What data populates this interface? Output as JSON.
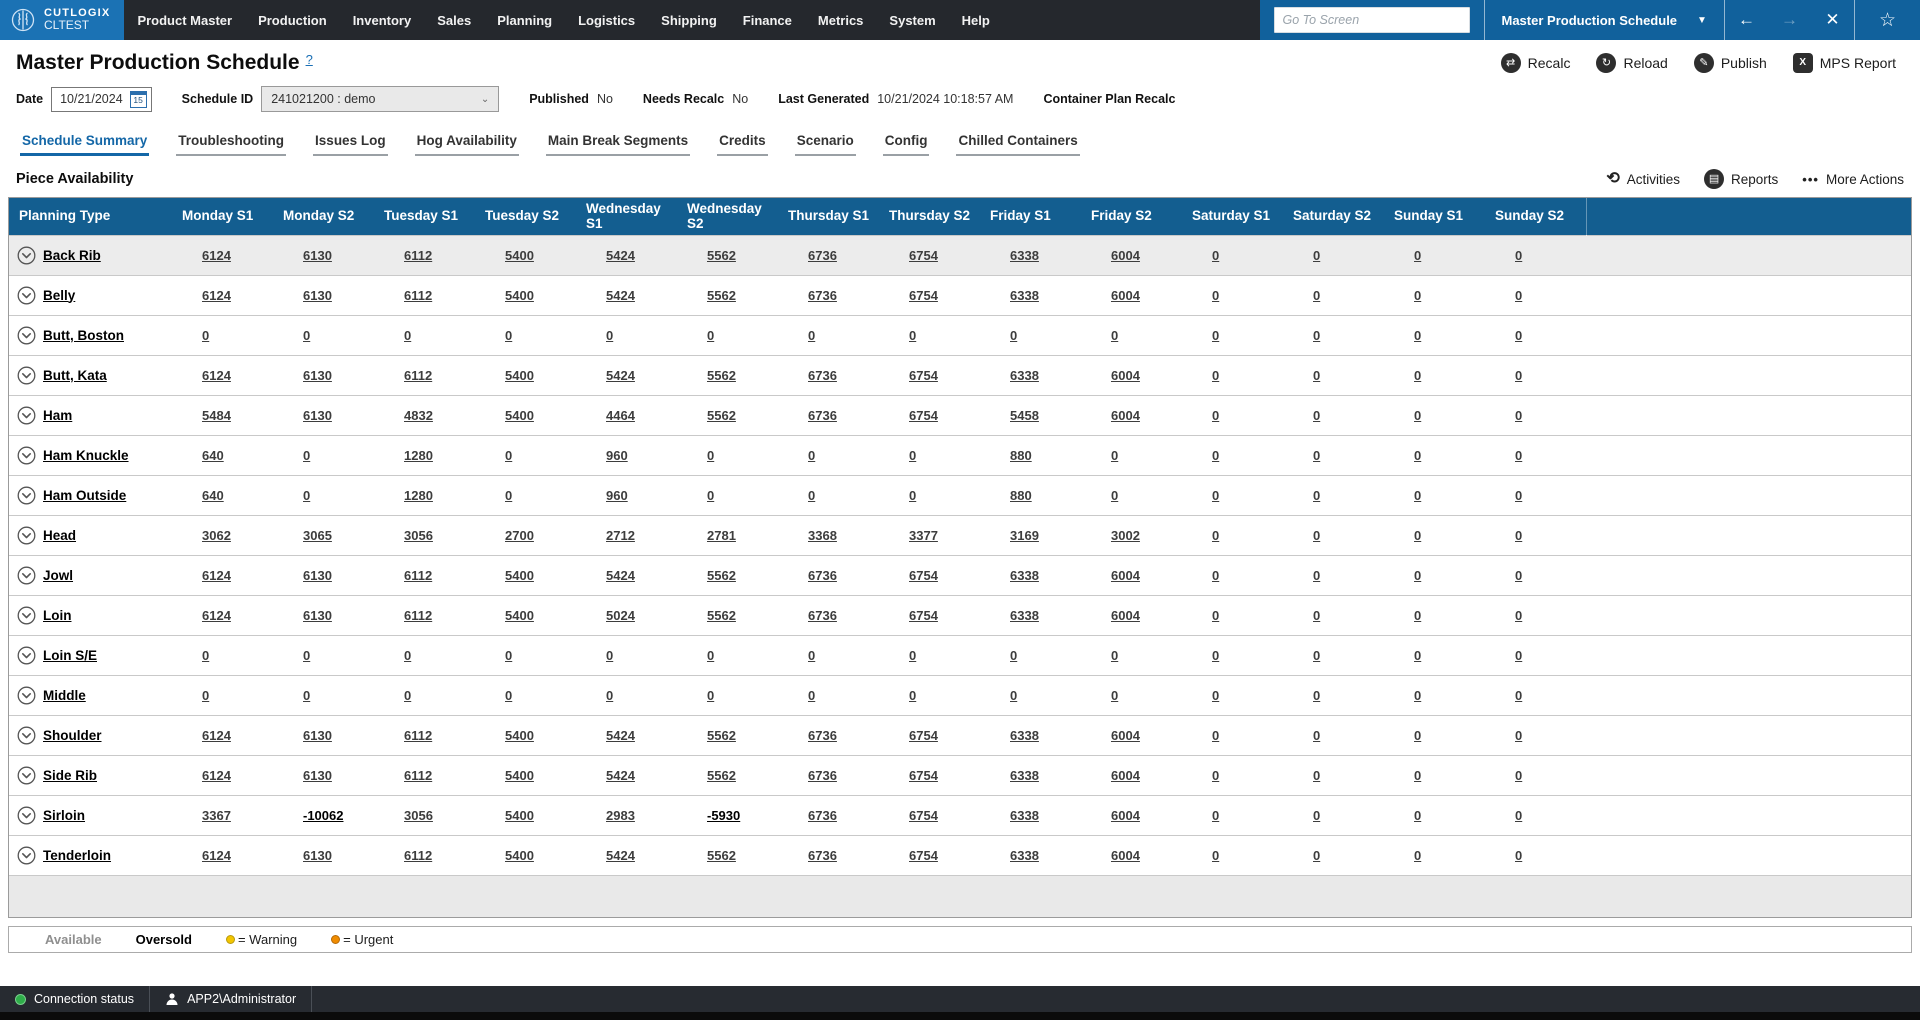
{
  "colors": {
    "brand_blue": "#1b72b4",
    "panel_blue": "#11619c",
    "table_header_blue": "#135e90",
    "link_blue": "#1a6fb5",
    "topbar_dark": "#25282d",
    "warning_yellow": "#f2c500",
    "urgent_orange": "#f08c00",
    "status_green": "#2fae4a"
  },
  "topbar": {
    "logo": {
      "brand": "CUTLOGIX",
      "env": "CLTEST"
    },
    "nav": [
      "Product Master",
      "Production",
      "Inventory",
      "Sales",
      "Planning",
      "Logistics",
      "Shipping",
      "Finance",
      "Metrics",
      "System",
      "Help"
    ],
    "goto_placeholder": "Go To Screen",
    "screen_select": {
      "value": "Master Production Schedule",
      "caret": "▼"
    },
    "window_buttons": [
      {
        "name": "back-button",
        "icon": "back-arrow-icon",
        "glyph": "←",
        "enabled": true
      },
      {
        "name": "forward-button",
        "icon": "forward-arrow-icon",
        "glyph": "→",
        "enabled": false
      },
      {
        "name": "close-button",
        "icon": "close-icon",
        "glyph": "✕",
        "enabled": true
      }
    ],
    "favorite_glyph": "☆"
  },
  "header": {
    "title": "Master Production Schedule",
    "help_glyph": "?",
    "actions": [
      {
        "label": "Recalc",
        "icon": "recalc-icon",
        "glyph": "⇄",
        "shape": "circle"
      },
      {
        "label": "Reload",
        "icon": "reload-icon",
        "glyph": "↻",
        "shape": "circle"
      },
      {
        "label": "Publish",
        "icon": "publish-pencil-icon",
        "glyph": "✎",
        "shape": "circle"
      },
      {
        "label": "MPS Report",
        "icon": "mps-report-excel-icon",
        "glyph": "X",
        "shape": "square"
      }
    ]
  },
  "info": {
    "date_label": "Date",
    "date_value": "10/21/2024",
    "date_icon_day": "15",
    "schedule_id_label": "Schedule ID",
    "schedule_id_value": "241021200 : demo",
    "schedule_caret": "⌄",
    "published_label": "Published",
    "published_value": "No",
    "needs_recalc_label": "Needs Recalc",
    "needs_recalc_value": "No",
    "last_generated_label": "Last Generated",
    "last_generated_value": "10/21/2024 10:18:57 AM",
    "container_plan_label": "Container Plan Recalc"
  },
  "tabs": {
    "active_index": 0,
    "items": [
      "Schedule Summary",
      "Troubleshooting",
      "Issues Log",
      "Hog Availability",
      "Main Break Segments",
      "Credits",
      "Scenario",
      "Config",
      "Chilled Containers"
    ]
  },
  "section": {
    "title": "Piece Availability",
    "actions": [
      {
        "label": "Activities",
        "icon": "activities-history-icon",
        "glyph": "⟲",
        "shape": "plain"
      },
      {
        "label": "Reports",
        "icon": "reports-icon",
        "glyph": "▤",
        "shape": "circle"
      },
      {
        "label": "More Actions",
        "icon": "more-actions-icon",
        "glyph": "•••",
        "shape": "dots"
      }
    ]
  },
  "table": {
    "selected_row_index": 0,
    "columns": [
      "Planning Type",
      "Monday S1",
      "Monday S2",
      "Tuesday S1",
      "Tuesday S2",
      "Wednesday S1",
      "Wednesday S2",
      "Thursday S1",
      "Thursday S2",
      "Friday S1",
      "Friday S2",
      "Saturday S1",
      "Saturday S2",
      "Sunday S1",
      "Sunday S2"
    ],
    "rows": [
      {
        "name": "Back Rib",
        "values": [
          6124,
          6130,
          6112,
          5400,
          5424,
          5562,
          6736,
          6754,
          6338,
          6004,
          0,
          0,
          0,
          0
        ]
      },
      {
        "name": "Belly",
        "values": [
          6124,
          6130,
          6112,
          5400,
          5424,
          5562,
          6736,
          6754,
          6338,
          6004,
          0,
          0,
          0,
          0
        ]
      },
      {
        "name": "Butt, Boston",
        "values": [
          0,
          0,
          0,
          0,
          0,
          0,
          0,
          0,
          0,
          0,
          0,
          0,
          0,
          0
        ]
      },
      {
        "name": "Butt, Kata",
        "values": [
          6124,
          6130,
          6112,
          5400,
          5424,
          5562,
          6736,
          6754,
          6338,
          6004,
          0,
          0,
          0,
          0
        ]
      },
      {
        "name": "Ham",
        "values": [
          5484,
          6130,
          4832,
          5400,
          4464,
          5562,
          6736,
          6754,
          5458,
          6004,
          0,
          0,
          0,
          0
        ]
      },
      {
        "name": "Ham Knuckle",
        "values": [
          640,
          0,
          1280,
          0,
          960,
          0,
          0,
          0,
          880,
          0,
          0,
          0,
          0,
          0
        ]
      },
      {
        "name": "Ham Outside",
        "values": [
          640,
          0,
          1280,
          0,
          960,
          0,
          0,
          0,
          880,
          0,
          0,
          0,
          0,
          0
        ]
      },
      {
        "name": "Head",
        "values": [
          3062,
          3065,
          3056,
          2700,
          2712,
          2781,
          3368,
          3377,
          3169,
          3002,
          0,
          0,
          0,
          0
        ]
      },
      {
        "name": "Jowl",
        "values": [
          6124,
          6130,
          6112,
          5400,
          5424,
          5562,
          6736,
          6754,
          6338,
          6004,
          0,
          0,
          0,
          0
        ]
      },
      {
        "name": "Loin",
        "values": [
          6124,
          6130,
          6112,
          5400,
          5024,
          5562,
          6736,
          6754,
          6338,
          6004,
          0,
          0,
          0,
          0
        ]
      },
      {
        "name": "Loin S/E",
        "values": [
          0,
          0,
          0,
          0,
          0,
          0,
          0,
          0,
          0,
          0,
          0,
          0,
          0,
          0
        ]
      },
      {
        "name": "Middle",
        "values": [
          0,
          0,
          0,
          0,
          0,
          0,
          0,
          0,
          0,
          0,
          0,
          0,
          0,
          0
        ]
      },
      {
        "name": "Shoulder",
        "values": [
          6124,
          6130,
          6112,
          5400,
          5424,
          5562,
          6736,
          6754,
          6338,
          6004,
          0,
          0,
          0,
          0
        ]
      },
      {
        "name": "Side Rib",
        "values": [
          6124,
          6130,
          6112,
          5400,
          5424,
          5562,
          6736,
          6754,
          6338,
          6004,
          0,
          0,
          0,
          0
        ]
      },
      {
        "name": "Sirloin",
        "values": [
          3367,
          -10062,
          3056,
          5400,
          2983,
          -5930,
          6736,
          6754,
          6338,
          6004,
          0,
          0,
          0,
          0
        ]
      },
      {
        "name": "Tenderloin",
        "values": [
          6124,
          6130,
          6112,
          5400,
          5424,
          5562,
          6736,
          6754,
          6338,
          6004,
          0,
          0,
          0,
          0
        ]
      }
    ]
  },
  "legend": {
    "available_label": "Available",
    "oversold_label": "Oversold",
    "warning_label": "= Warning",
    "urgent_label": "= Urgent"
  },
  "statusbar": {
    "connection_label": "Connection status",
    "user": "APP2\\Administrator"
  }
}
